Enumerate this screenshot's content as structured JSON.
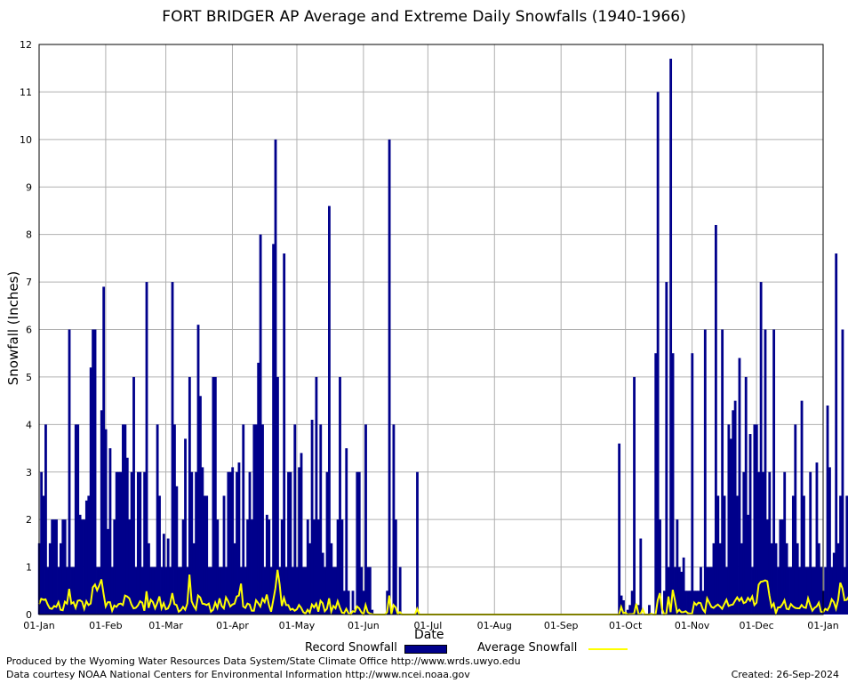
{
  "chart_data": {
    "type": "bar",
    "title": "FORT BRIDGER AP Average and Extreme Daily Snowfalls (1940-1966)",
    "xlabel": "Date",
    "ylabel": "Snowfall (Inches)",
    "ylim": [
      0,
      12
    ],
    "yticks": [
      0,
      1,
      2,
      3,
      4,
      5,
      6,
      7,
      8,
      9,
      10,
      11,
      12
    ],
    "xticks": [
      {
        "label": "01-Jan",
        "day": 1
      },
      {
        "label": "01-Feb",
        "day": 32
      },
      {
        "label": "01-Mar",
        "day": 60
      },
      {
        "label": "01-Apr",
        "day": 91
      },
      {
        "label": "01-May",
        "day": 121
      },
      {
        "label": "01-Jun",
        "day": 152
      },
      {
        "label": "01-Jul",
        "day": 182
      },
      {
        "label": "01-Aug",
        "day": 213
      },
      {
        "label": "01-Sep",
        "day": 244
      },
      {
        "label": "01-Oct",
        "day": 274
      },
      {
        "label": "01-Nov",
        "day": 305
      },
      {
        "label": "01-Dec",
        "day": 335
      },
      {
        "label": "01-Jan",
        "day": 366
      }
    ],
    "grid": true,
    "series": [
      {
        "name": "Record Snowfall",
        "type": "bar",
        "color": "#00008b",
        "days_start": 1,
        "values": [
          1.5,
          3.0,
          2.5,
          4.0,
          1.0,
          1.5,
          2.0,
          2.0,
          2.0,
          1.0,
          1.5,
          2.0,
          2.0,
          1.0,
          6.0,
          1.0,
          1.0,
          4.0,
          4.0,
          2.1,
          2.0,
          2.0,
          2.4,
          2.5,
          5.2,
          6.0,
          6.0,
          1.0,
          1.0,
          4.3,
          6.9,
          3.9,
          1.8,
          3.5,
          1.0,
          2.0,
          3.0,
          3.0,
          3.0,
          4.0,
          4.0,
          3.3,
          2.0,
          3.0,
          5.0,
          1.0,
          3.0,
          3.0,
          1.0,
          3.0,
          7.0,
          1.5,
          1.0,
          1.0,
          1.0,
          4.0,
          2.5,
          1.0,
          1.7,
          1.0,
          1.6,
          1.0,
          7.0,
          4.0,
          2.7,
          1.0,
          1.0,
          2.0,
          3.7,
          1.0,
          5.0,
          3.0,
          1.5,
          3.0,
          6.1,
          4.6,
          3.1,
          2.5,
          2.5,
          1.0,
          1.0,
          5.0,
          5.0,
          2.0,
          1.0,
          1.0,
          2.5,
          1.0,
          3.0,
          3.0,
          3.1,
          1.5,
          3.0,
          3.2,
          1.0,
          4.0,
          1.0,
          2.0,
          3.0,
          2.0,
          4.0,
          4.0,
          5.3,
          8.0,
          4.0,
          1.0,
          2.1,
          2.0,
          1.0,
          7.8,
          10.0,
          5.0,
          1.0,
          2.0,
          7.6,
          1.0,
          3.0,
          3.0,
          1.0,
          4.0,
          1.0,
          3.1,
          3.4,
          1.0,
          1.0,
          2.0,
          1.5,
          4.1,
          2.0,
          5.0,
          2.0,
          4.0,
          1.3,
          1.0,
          3.0,
          8.6,
          1.5,
          1.0,
          1.0,
          2.0,
          5.0,
          2.0,
          0.5,
          3.5,
          0.5,
          0.0,
          0.5,
          0.1,
          3.0,
          3.0,
          1.0,
          0.5,
          4.0,
          1.0,
          1.0,
          0.1,
          0.0,
          0.0,
          0.0,
          0.0,
          0.0,
          0.0,
          0.5,
          10.0,
          0.1,
          4.0,
          2.0,
          0.0,
          1.0,
          0.0,
          0.0,
          0.0,
          0.0,
          0.0,
          0.0,
          0.0,
          3.0,
          0.0,
          0.0,
          0.0,
          0.0,
          0.0,
          0.0,
          0.0,
          0.0,
          0.0,
          0.0,
          0.0,
          0.0,
          0.0,
          0.0,
          0.0,
          0.0,
          0.0,
          0.0,
          0.0,
          0.0,
          0.0,
          0.0,
          0.0,
          0.0,
          0.0,
          0.0,
          0.0,
          0.0,
          0.0,
          0.0,
          0.0,
          0.0,
          0.0,
          0.0,
          0.0,
          0.0,
          0.0,
          0.0,
          0.0,
          0.0,
          0.0,
          0.0,
          0.0,
          0.0,
          0.0,
          0.0,
          0.0,
          0.0,
          0.0,
          0.0,
          0.0,
          0.0,
          0.0,
          0.0,
          0.0,
          0.0,
          0.0,
          0.0,
          0.0,
          0.0,
          0.0,
          0.0,
          0.0,
          0.0,
          0.0,
          0.0,
          0.0,
          0.0,
          0.0,
          0.0,
          0.0,
          0.0,
          0.0,
          0.0,
          0.0,
          0.0,
          0.0,
          0.0,
          0.0,
          0.0,
          0.0,
          0.0,
          0.0,
          0.0,
          0.0,
          0.0,
          0.0,
          0.0,
          0.0,
          0.0,
          0.0,
          0.0,
          0.0,
          3.6,
          0.4,
          0.3,
          0.0,
          0.1,
          0.2,
          0.5,
          5.0,
          0.2,
          0.2,
          1.6,
          0.0,
          0.0,
          0.0,
          0.2,
          0.0,
          0.0,
          5.5,
          11.0,
          2.0,
          0.0,
          0.5,
          7.0,
          1.0,
          11.7,
          5.5,
          1.0,
          2.0,
          1.0,
          0.9,
          1.2,
          0.5,
          0.5,
          0.5,
          5.5,
          0.5,
          0.5,
          0.5,
          1.0,
          0.5,
          6.0,
          1.0,
          1.0,
          1.0,
          1.5,
          8.2,
          2.5,
          1.5,
          6.0,
          2.5,
          1.0,
          4.0,
          3.7,
          4.3,
          4.5,
          2.5,
          5.4,
          1.5,
          3.0,
          5.0,
          2.1,
          3.8,
          1.0,
          4.0,
          4.0,
          3.0,
          7.0,
          3.0,
          6.0,
          2.0,
          3.0,
          1.5,
          6.0,
          1.5,
          1.0,
          2.0,
          2.0,
          3.0,
          1.5,
          1.0,
          1.0,
          2.5,
          4.0,
          1.5,
          1.0,
          4.5,
          2.5,
          1.0,
          1.0,
          3.0,
          1.0,
          1.0,
          3.2,
          1.5,
          1.0,
          0.5,
          1.0,
          4.4,
          3.1,
          1.0,
          1.3,
          7.6,
          1.5,
          2.5,
          6.0,
          1.0,
          2.5,
          1.0,
          3.0,
          2.7,
          2.1
        ]
      },
      {
        "name": "Average Snowfall",
        "type": "line",
        "color": "#ffff00",
        "days_start": 1,
        "values": [
          0.22,
          0.33,
          0.31,
          0.32,
          0.21,
          0.13,
          0.12,
          0.18,
          0.16,
          0.26,
          0.1,
          0.09,
          0.27,
          0.23,
          0.54,
          0.23,
          0.26,
          0.14,
          0.29,
          0.3,
          0.27,
          0.12,
          0.28,
          0.2,
          0.23,
          0.57,
          0.63,
          0.51,
          0.61,
          0.74,
          0.44,
          0.17,
          0.26,
          0.26,
          0.08,
          0.19,
          0.16,
          0.22,
          0.23,
          0.2,
          0.4,
          0.38,
          0.34,
          0.21,
          0.13,
          0.14,
          0.19,
          0.28,
          0.25,
          0.08,
          0.49,
          0.14,
          0.31,
          0.26,
          0.13,
          0.24,
          0.38,
          0.13,
          0.24,
          0.11,
          0.13,
          0.23,
          0.45,
          0.22,
          0.2,
          0.06,
          0.09,
          0.16,
          0.1,
          0.23,
          0.84,
          0.28,
          0.18,
          0.11,
          0.4,
          0.36,
          0.23,
          0.22,
          0.2,
          0.23,
          0.06,
          0.1,
          0.25,
          0.14,
          0.34,
          0.18,
          0.13,
          0.36,
          0.28,
          0.17,
          0.21,
          0.23,
          0.38,
          0.4,
          0.65,
          0.17,
          0.14,
          0.23,
          0.21,
          0.08,
          0.08,
          0.3,
          0.24,
          0.17,
          0.33,
          0.26,
          0.42,
          0.2,
          0.06,
          0.3,
          0.55,
          0.94,
          0.63,
          0.18,
          0.35,
          0.2,
          0.2,
          0.1,
          0.12,
          0.08,
          0.11,
          0.2,
          0.14,
          0.05,
          0.02,
          0.1,
          0.04,
          0.21,
          0.15,
          0.23,
          0.06,
          0.29,
          0.24,
          0.07,
          0.12,
          0.34,
          0.06,
          0.18,
          0.13,
          0.28,
          0.15,
          0.04,
          0.03,
          0.12,
          0.03,
          0.0,
          0.07,
          0.06,
          0.17,
          0.13,
          0.05,
          0.0,
          0.2,
          0.05,
          0.02,
          0.01,
          0.0,
          0.0,
          0.0,
          0.0,
          0.0,
          0.0,
          0.05,
          0.4,
          0.01,
          0.2,
          0.15,
          0.01,
          0.05,
          0.0,
          0.0,
          0.0,
          0.0,
          0.0,
          0.0,
          0.0,
          0.12,
          0.0,
          0.0,
          0.0,
          0.0,
          0.0,
          0.0,
          0.0,
          0.0,
          0.0,
          0.0,
          0.0,
          0.0,
          0.0,
          0.0,
          0.0,
          0.0,
          0.0,
          0.0,
          0.0,
          0.0,
          0.0,
          0.0,
          0.0,
          0.0,
          0.0,
          0.0,
          0.0,
          0.0,
          0.0,
          0.0,
          0.0,
          0.0,
          0.0,
          0.0,
          0.0,
          0.0,
          0.0,
          0.0,
          0.0,
          0.0,
          0.0,
          0.0,
          0.0,
          0.0,
          0.0,
          0.0,
          0.0,
          0.0,
          0.0,
          0.0,
          0.0,
          0.0,
          0.0,
          0.0,
          0.0,
          0.0,
          0.0,
          0.0,
          0.0,
          0.0,
          0.0,
          0.0,
          0.0,
          0.0,
          0.0,
          0.0,
          0.0,
          0.0,
          0.0,
          0.0,
          0.0,
          0.0,
          0.0,
          0.0,
          0.0,
          0.0,
          0.0,
          0.0,
          0.0,
          0.0,
          0.0,
          0.0,
          0.0,
          0.0,
          0.0,
          0.0,
          0.0,
          0.0,
          0.0,
          0.0,
          0.0,
          0.0,
          0.0,
          0.0,
          0.16,
          0.03,
          0.04,
          0.0,
          0.01,
          0.01,
          0.02,
          0.23,
          0.02,
          0.01,
          0.11,
          0.0,
          0.0,
          0.0,
          0.02,
          0.0,
          0.0,
          0.3,
          0.45,
          0.12,
          0.0,
          0.02,
          0.38,
          0.05,
          0.52,
          0.3,
          0.05,
          0.1,
          0.05,
          0.05,
          0.07,
          0.03,
          0.02,
          0.02,
          0.25,
          0.2,
          0.25,
          0.24,
          0.11,
          0.05,
          0.34,
          0.25,
          0.16,
          0.14,
          0.18,
          0.21,
          0.17,
          0.12,
          0.22,
          0.31,
          0.18,
          0.2,
          0.21,
          0.29,
          0.36,
          0.29,
          0.35,
          0.24,
          0.26,
          0.35,
          0.29,
          0.38,
          0.2,
          0.25,
          0.63,
          0.69,
          0.7,
          0.72,
          0.7,
          0.4,
          0.16,
          0.23,
          0.03,
          0.15,
          0.15,
          0.21,
          0.3,
          0.12,
          0.11,
          0.22,
          0.17,
          0.14,
          0.13,
          0.13,
          0.2,
          0.15,
          0.14,
          0.34,
          0.2,
          0.08,
          0.14,
          0.17,
          0.25,
          0.06,
          0.05,
          0.12,
          0.09,
          0.17,
          0.32,
          0.26,
          0.12,
          0.31,
          0.67,
          0.55,
          0.3,
          0.31,
          0.38,
          0.36,
          0.29,
          0.37,
          0.43,
          0.47
        ]
      }
    ]
  },
  "text": {
    "title": "FORT BRIDGER AP Average and Extreme Daily Snowfalls (1940-1966)",
    "ylabel": "Snowfall (Inches)",
    "xlabel": "Date",
    "legend_record": "Record Snowfall",
    "legend_average": "Average Snowfall",
    "footer_line1": "Produced by the Wyoming Water Resources Data System/State Climate Office http://www.wrds.uwyo.edu",
    "footer_line2": "Data courtesy NOAA National Centers for Environmental Information http://www.ncei.noaa.gov",
    "created": "Created:  26-Sep-2024"
  }
}
